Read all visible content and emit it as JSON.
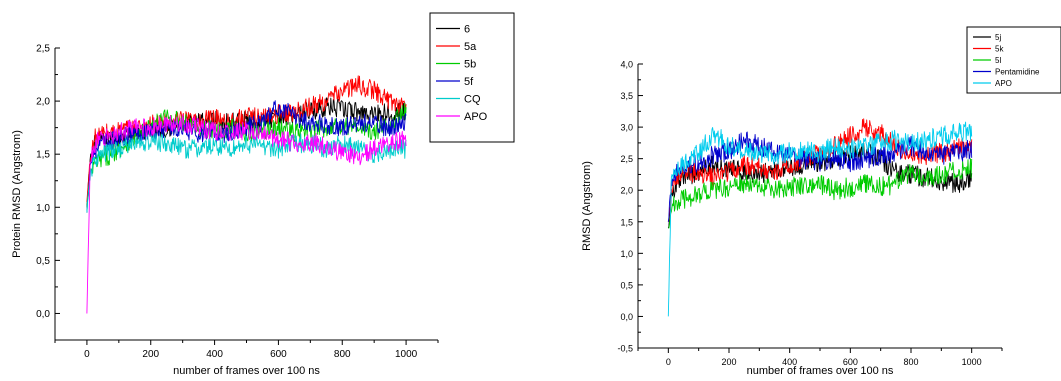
{
  "chart_data": [
    {
      "type": "line",
      "title": "",
      "xlabel": "number of frames over 100 ns",
      "ylabel": "Protein RMSD (Angstrom)",
      "xlim": [
        -100,
        1100
      ],
      "ylim": [
        -0.25,
        2.5
      ],
      "xticks": [
        0,
        200,
        400,
        600,
        800,
        1000
      ],
      "xtick_labels": [
        "0",
        "200",
        "400",
        "600",
        "800",
        "1000"
      ],
      "yticks": [
        0.0,
        0.5,
        1.0,
        1.5,
        2.0,
        2.5
      ],
      "ytick_labels": [
        "0,0",
        "0,5",
        "1,0",
        "1,5",
        "2,0",
        "2,5"
      ],
      "grid": false,
      "legend_position": "top-right",
      "series": [
        {
          "name": "6",
          "color": "#000000",
          "x": [
            0,
            10,
            25,
            50,
            100,
            150,
            200,
            250,
            300,
            350,
            400,
            450,
            500,
            550,
            600,
            650,
            700,
            750,
            800,
            850,
            900,
            950,
            1000
          ],
          "y": [
            1.0,
            1.45,
            1.6,
            1.62,
            1.65,
            1.7,
            1.72,
            1.75,
            1.78,
            1.8,
            1.82,
            1.8,
            1.82,
            1.8,
            1.85,
            1.88,
            1.9,
            1.95,
            1.92,
            1.9,
            1.88,
            1.9,
            1.9
          ]
        },
        {
          "name": "5a",
          "color": "#ff0000",
          "x": [
            0,
            10,
            25,
            50,
            100,
            150,
            200,
            250,
            300,
            350,
            400,
            450,
            500,
            550,
            600,
            650,
            700,
            750,
            800,
            850,
            900,
            950,
            1000
          ],
          "y": [
            1.05,
            1.45,
            1.65,
            1.7,
            1.72,
            1.75,
            1.78,
            1.8,
            1.82,
            1.8,
            1.85,
            1.82,
            1.85,
            1.85,
            1.88,
            1.9,
            1.95,
            2.0,
            2.1,
            2.15,
            2.1,
            2.0,
            1.95
          ]
        },
        {
          "name": "5b",
          "color": "#00cc00",
          "x": [
            0,
            10,
            25,
            50,
            100,
            150,
            200,
            250,
            300,
            350,
            400,
            450,
            500,
            550,
            600,
            650,
            700,
            750,
            800,
            850,
            900,
            950,
            1000
          ],
          "y": [
            1.0,
            1.3,
            1.42,
            1.45,
            1.55,
            1.65,
            1.75,
            1.85,
            1.8,
            1.75,
            1.72,
            1.75,
            1.7,
            1.72,
            1.75,
            1.7,
            1.72,
            1.75,
            1.78,
            1.75,
            1.7,
            1.8,
            1.9
          ]
        },
        {
          "name": "5f",
          "color": "#0000cc",
          "x": [
            0,
            10,
            25,
            50,
            100,
            150,
            200,
            250,
            300,
            350,
            400,
            450,
            500,
            550,
            600,
            650,
            700,
            750,
            800,
            850,
            900,
            950,
            1000
          ],
          "y": [
            0.95,
            1.4,
            1.55,
            1.6,
            1.65,
            1.7,
            1.72,
            1.75,
            1.72,
            1.7,
            1.68,
            1.7,
            1.75,
            1.8,
            1.95,
            1.85,
            1.8,
            1.78,
            1.75,
            1.8,
            1.78,
            1.75,
            1.8
          ]
        },
        {
          "name": "CQ",
          "color": "#00cccc",
          "x": [
            0,
            10,
            25,
            50,
            100,
            150,
            200,
            250,
            300,
            350,
            400,
            450,
            500,
            550,
            600,
            650,
            700,
            750,
            800,
            850,
            900,
            950,
            1000
          ],
          "y": [
            0.95,
            1.3,
            1.45,
            1.5,
            1.55,
            1.6,
            1.62,
            1.6,
            1.55,
            1.55,
            1.58,
            1.55,
            1.6,
            1.58,
            1.55,
            1.6,
            1.6,
            1.55,
            1.6,
            1.55,
            1.5,
            1.55,
            1.55
          ]
        },
        {
          "name": "APO",
          "color": "#ff00ff",
          "x": [
            0,
            10,
            25,
            50,
            100,
            150,
            200,
            250,
            300,
            350,
            400,
            450,
            500,
            550,
            600,
            650,
            700,
            750,
            800,
            850,
            900,
            950,
            1000
          ],
          "y": [
            0.0,
            1.4,
            1.6,
            1.65,
            1.7,
            1.75,
            1.75,
            1.78,
            1.8,
            1.75,
            1.72,
            1.7,
            1.72,
            1.68,
            1.65,
            1.6,
            1.62,
            1.58,
            1.5,
            1.48,
            1.55,
            1.6,
            1.65
          ]
        }
      ]
    },
    {
      "type": "line",
      "title": "",
      "xlabel": "number of frames over 100 ns",
      "ylabel": "RMSD (Angstrom)",
      "xlim": [
        -100,
        1100
      ],
      "ylim": [
        -0.5,
        4.0
      ],
      "xticks": [
        0,
        200,
        400,
        600,
        800,
        1000
      ],
      "xtick_labels": [
        "0",
        "200",
        "400",
        "600",
        "800",
        "1000"
      ],
      "yticks": [
        -0.5,
        0.0,
        0.5,
        1.0,
        1.5,
        2.0,
        2.5,
        3.0,
        3.5,
        4.0
      ],
      "ytick_labels": [
        "-0,5",
        "0,0",
        "0,5",
        "1,0",
        "1,5",
        "2,0",
        "2,5",
        "3,0",
        "3,5",
        "4,0"
      ],
      "grid": false,
      "legend_position": "top-right",
      "series": [
        {
          "name": "5j",
          "color": "#000000",
          "x": [
            0,
            10,
            25,
            50,
            100,
            150,
            200,
            250,
            300,
            350,
            400,
            450,
            500,
            550,
            600,
            650,
            700,
            750,
            800,
            850,
            900,
            950,
            1000
          ],
          "y": [
            1.4,
            1.9,
            2.1,
            2.2,
            2.3,
            2.4,
            2.35,
            2.3,
            2.25,
            2.3,
            2.35,
            2.4,
            2.45,
            2.5,
            2.55,
            2.6,
            2.5,
            2.3,
            2.25,
            2.2,
            2.15,
            2.1,
            2.2
          ]
        },
        {
          "name": "5k",
          "color": "#ff0000",
          "x": [
            0,
            10,
            25,
            50,
            100,
            150,
            200,
            250,
            300,
            350,
            400,
            450,
            500,
            550,
            600,
            650,
            700,
            750,
            800,
            850,
            900,
            950,
            1000
          ],
          "y": [
            1.5,
            2.0,
            2.2,
            2.25,
            2.3,
            2.2,
            2.3,
            2.4,
            2.35,
            2.3,
            2.4,
            2.5,
            2.6,
            2.7,
            2.85,
            3.0,
            2.9,
            2.7,
            2.6,
            2.55,
            2.6,
            2.65,
            2.7
          ]
        },
        {
          "name": "5l",
          "color": "#00cc00",
          "x": [
            0,
            10,
            25,
            50,
            100,
            150,
            200,
            250,
            300,
            350,
            400,
            450,
            500,
            550,
            600,
            650,
            700,
            750,
            800,
            850,
            900,
            950,
            1000
          ],
          "y": [
            1.4,
            1.7,
            1.8,
            1.85,
            1.95,
            2.0,
            2.05,
            2.1,
            2.05,
            2.0,
            2.05,
            2.1,
            2.1,
            2.0,
            2.05,
            2.1,
            2.05,
            2.1,
            2.3,
            2.2,
            2.25,
            2.3,
            2.35
          ]
        },
        {
          "name": "Pentamidine",
          "color": "#0000cc",
          "x": [
            0,
            10,
            25,
            50,
            100,
            150,
            200,
            250,
            300,
            350,
            400,
            450,
            500,
            550,
            600,
            650,
            700,
            750,
            800,
            850,
            900,
            950,
            1000
          ],
          "y": [
            1.5,
            2.1,
            2.3,
            2.35,
            2.45,
            2.55,
            2.6,
            2.8,
            2.7,
            2.6,
            2.55,
            2.5,
            2.45,
            2.5,
            2.45,
            2.5,
            2.55,
            2.6,
            2.7,
            2.6,
            2.55,
            2.6,
            2.65
          ]
        },
        {
          "name": "APO",
          "color": "#00ccee",
          "x": [
            0,
            10,
            25,
            50,
            100,
            150,
            200,
            250,
            300,
            350,
            400,
            450,
            500,
            550,
            600,
            650,
            700,
            750,
            800,
            850,
            900,
            950,
            1000
          ],
          "y": [
            0.0,
            2.2,
            2.35,
            2.4,
            2.6,
            2.9,
            2.7,
            2.65,
            2.6,
            2.55,
            2.6,
            2.65,
            2.6,
            2.7,
            2.65,
            2.7,
            2.75,
            2.8,
            2.75,
            2.8,
            2.85,
            2.9,
            2.95
          ]
        }
      ]
    }
  ]
}
